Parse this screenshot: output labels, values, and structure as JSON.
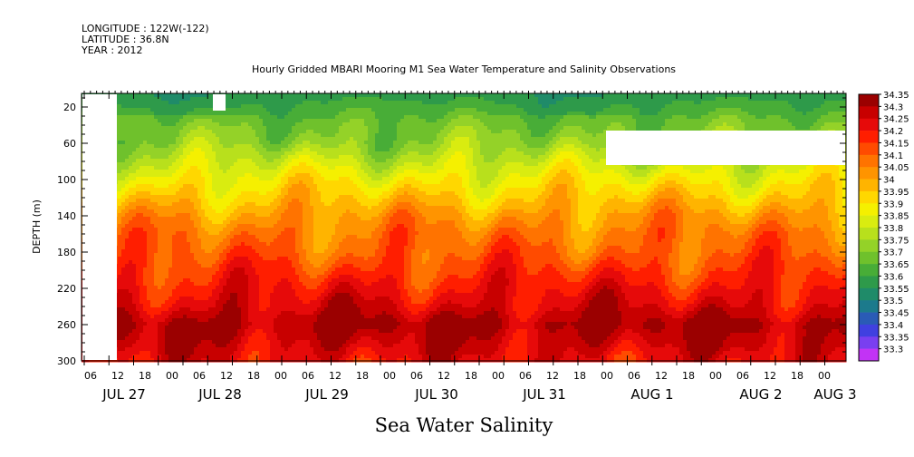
{
  "header": {
    "longitude": "LONGITUDE : 122W(-122)",
    "latitude": "LATITUDE : 36.8N",
    "year": "YEAR : 2012"
  },
  "chart_data": {
    "type": "heatmap",
    "title": "Hourly Gridded MBARI Mooring M1 Sea Water Temperature and Salinity Observations",
    "xlabel": "Sea Water Salinity",
    "ylabel": "DEPTH (m)",
    "y_range": [
      300,
      0
    ],
    "y_ticks": [
      20,
      60,
      100,
      140,
      180,
      220,
      260,
      300
    ],
    "x_hour_ticks": [
      "06",
      "12",
      "18",
      "00",
      "06",
      "12",
      "18",
      "00",
      "06",
      "12",
      "18",
      "00",
      "06",
      "12",
      "18",
      "00",
      "06",
      "12",
      "18",
      "00",
      "06",
      "12",
      "18",
      "00",
      "06",
      "12",
      "18",
      "00",
      "06",
      "12",
      "18",
      "00"
    ],
    "x_day_labels": [
      "JUL 27",
      "JUL 28",
      "JUL 29",
      "JUL 30",
      "JUL 31",
      "AUG  1",
      "AUG  2",
      "AUG  3"
    ],
    "colorbar_levels": [
      "34.35",
      "34.3",
      "34.25",
      "34.2",
      "34.15",
      "34.1",
      "34.05",
      "34",
      "33.95",
      "33.9",
      "33.85",
      "33.8",
      "33.75",
      "33.7",
      "33.65",
      "33.6",
      "33.55",
      "33.5",
      "33.45",
      "33.4",
      "33.35",
      "33.3"
    ],
    "colorbar_colors": [
      "#9b0000",
      "#c80000",
      "#e60a0a",
      "#ff1e00",
      "#ff4b00",
      "#ff7300",
      "#ff9400",
      "#ffb400",
      "#ffd700",
      "#f5f000",
      "#d9ec10",
      "#b8e01c",
      "#94d228",
      "#6fc12c",
      "#48ad37",
      "#2e9a4a",
      "#1f8b69",
      "#1c7a8c",
      "#2a5bb6",
      "#4040e0",
      "#7a3ff0",
      "#c233f5"
    ],
    "depth_profile": [
      {
        "depth_m": 5,
        "salinity": 33.58
      },
      {
        "depth_m": 20,
        "salinity": 33.62
      },
      {
        "depth_m": 40,
        "salinity": 33.68
      },
      {
        "depth_m": 60,
        "salinity": 33.72
      },
      {
        "depth_m": 80,
        "salinity": 33.8
      },
      {
        "depth_m": 100,
        "salinity": 33.88
      },
      {
        "depth_m": 120,
        "salinity": 33.95
      },
      {
        "depth_m": 140,
        "salinity": 34.02
      },
      {
        "depth_m": 160,
        "salinity": 34.07
      },
      {
        "depth_m": 180,
        "salinity": 34.1
      },
      {
        "depth_m": 200,
        "salinity": 34.15
      },
      {
        "depth_m": 220,
        "salinity": 34.2
      },
      {
        "depth_m": 240,
        "salinity": 34.25
      },
      {
        "depth_m": 260,
        "salinity": 34.32
      },
      {
        "depth_m": 280,
        "salinity": 34.27
      },
      {
        "depth_m": 300,
        "salinity": 34.22
      }
    ]
  }
}
